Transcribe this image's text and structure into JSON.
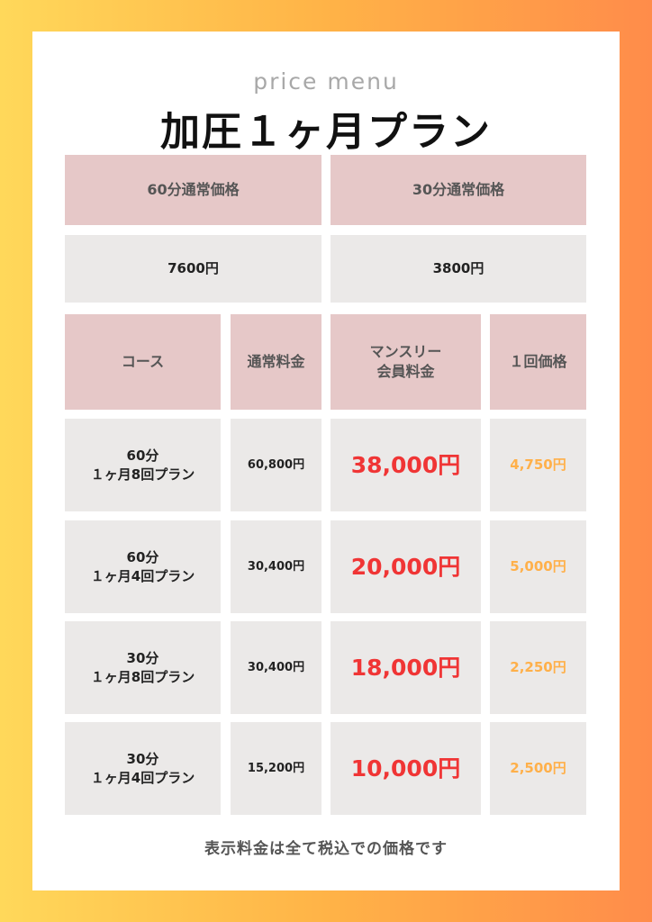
{
  "subtitle": "price menu",
  "title": "加圧１ヶ月プラン",
  "normal_prices": {
    "headers": [
      "60分通常価格",
      "30分通常価格"
    ],
    "values": [
      "7600円",
      "3800円"
    ]
  },
  "table": {
    "headers": [
      "コース",
      "通常料金",
      "マンスリー\n会員料金",
      "１回価格"
    ],
    "rows": [
      {
        "course": "60分\n１ヶ月8回プラン",
        "regular": "60,800円",
        "monthly": "38,000円",
        "per_session": "4,750円"
      },
      {
        "course": "60分\n１ヶ月4回プラン",
        "regular": "30,400円",
        "monthly": "20,000円",
        "per_session": "5,000円"
      },
      {
        "course": "30分\n１ヶ月8回プラン",
        "regular": "30,400円",
        "monthly": "18,000円",
        "per_session": "2,250円"
      },
      {
        "course": "30分\n１ヶ月4回プラン",
        "regular": "15,200円",
        "monthly": "10,000円",
        "per_session": "2,500円"
      }
    ]
  },
  "footnote": "表示料金は全て税込での価格です",
  "colors": {
    "header_bg": "#e6c8c8",
    "cell_bg": "#ebe9e8",
    "monthly_price": "#f03535",
    "per_session_price": "#ffb04a"
  }
}
